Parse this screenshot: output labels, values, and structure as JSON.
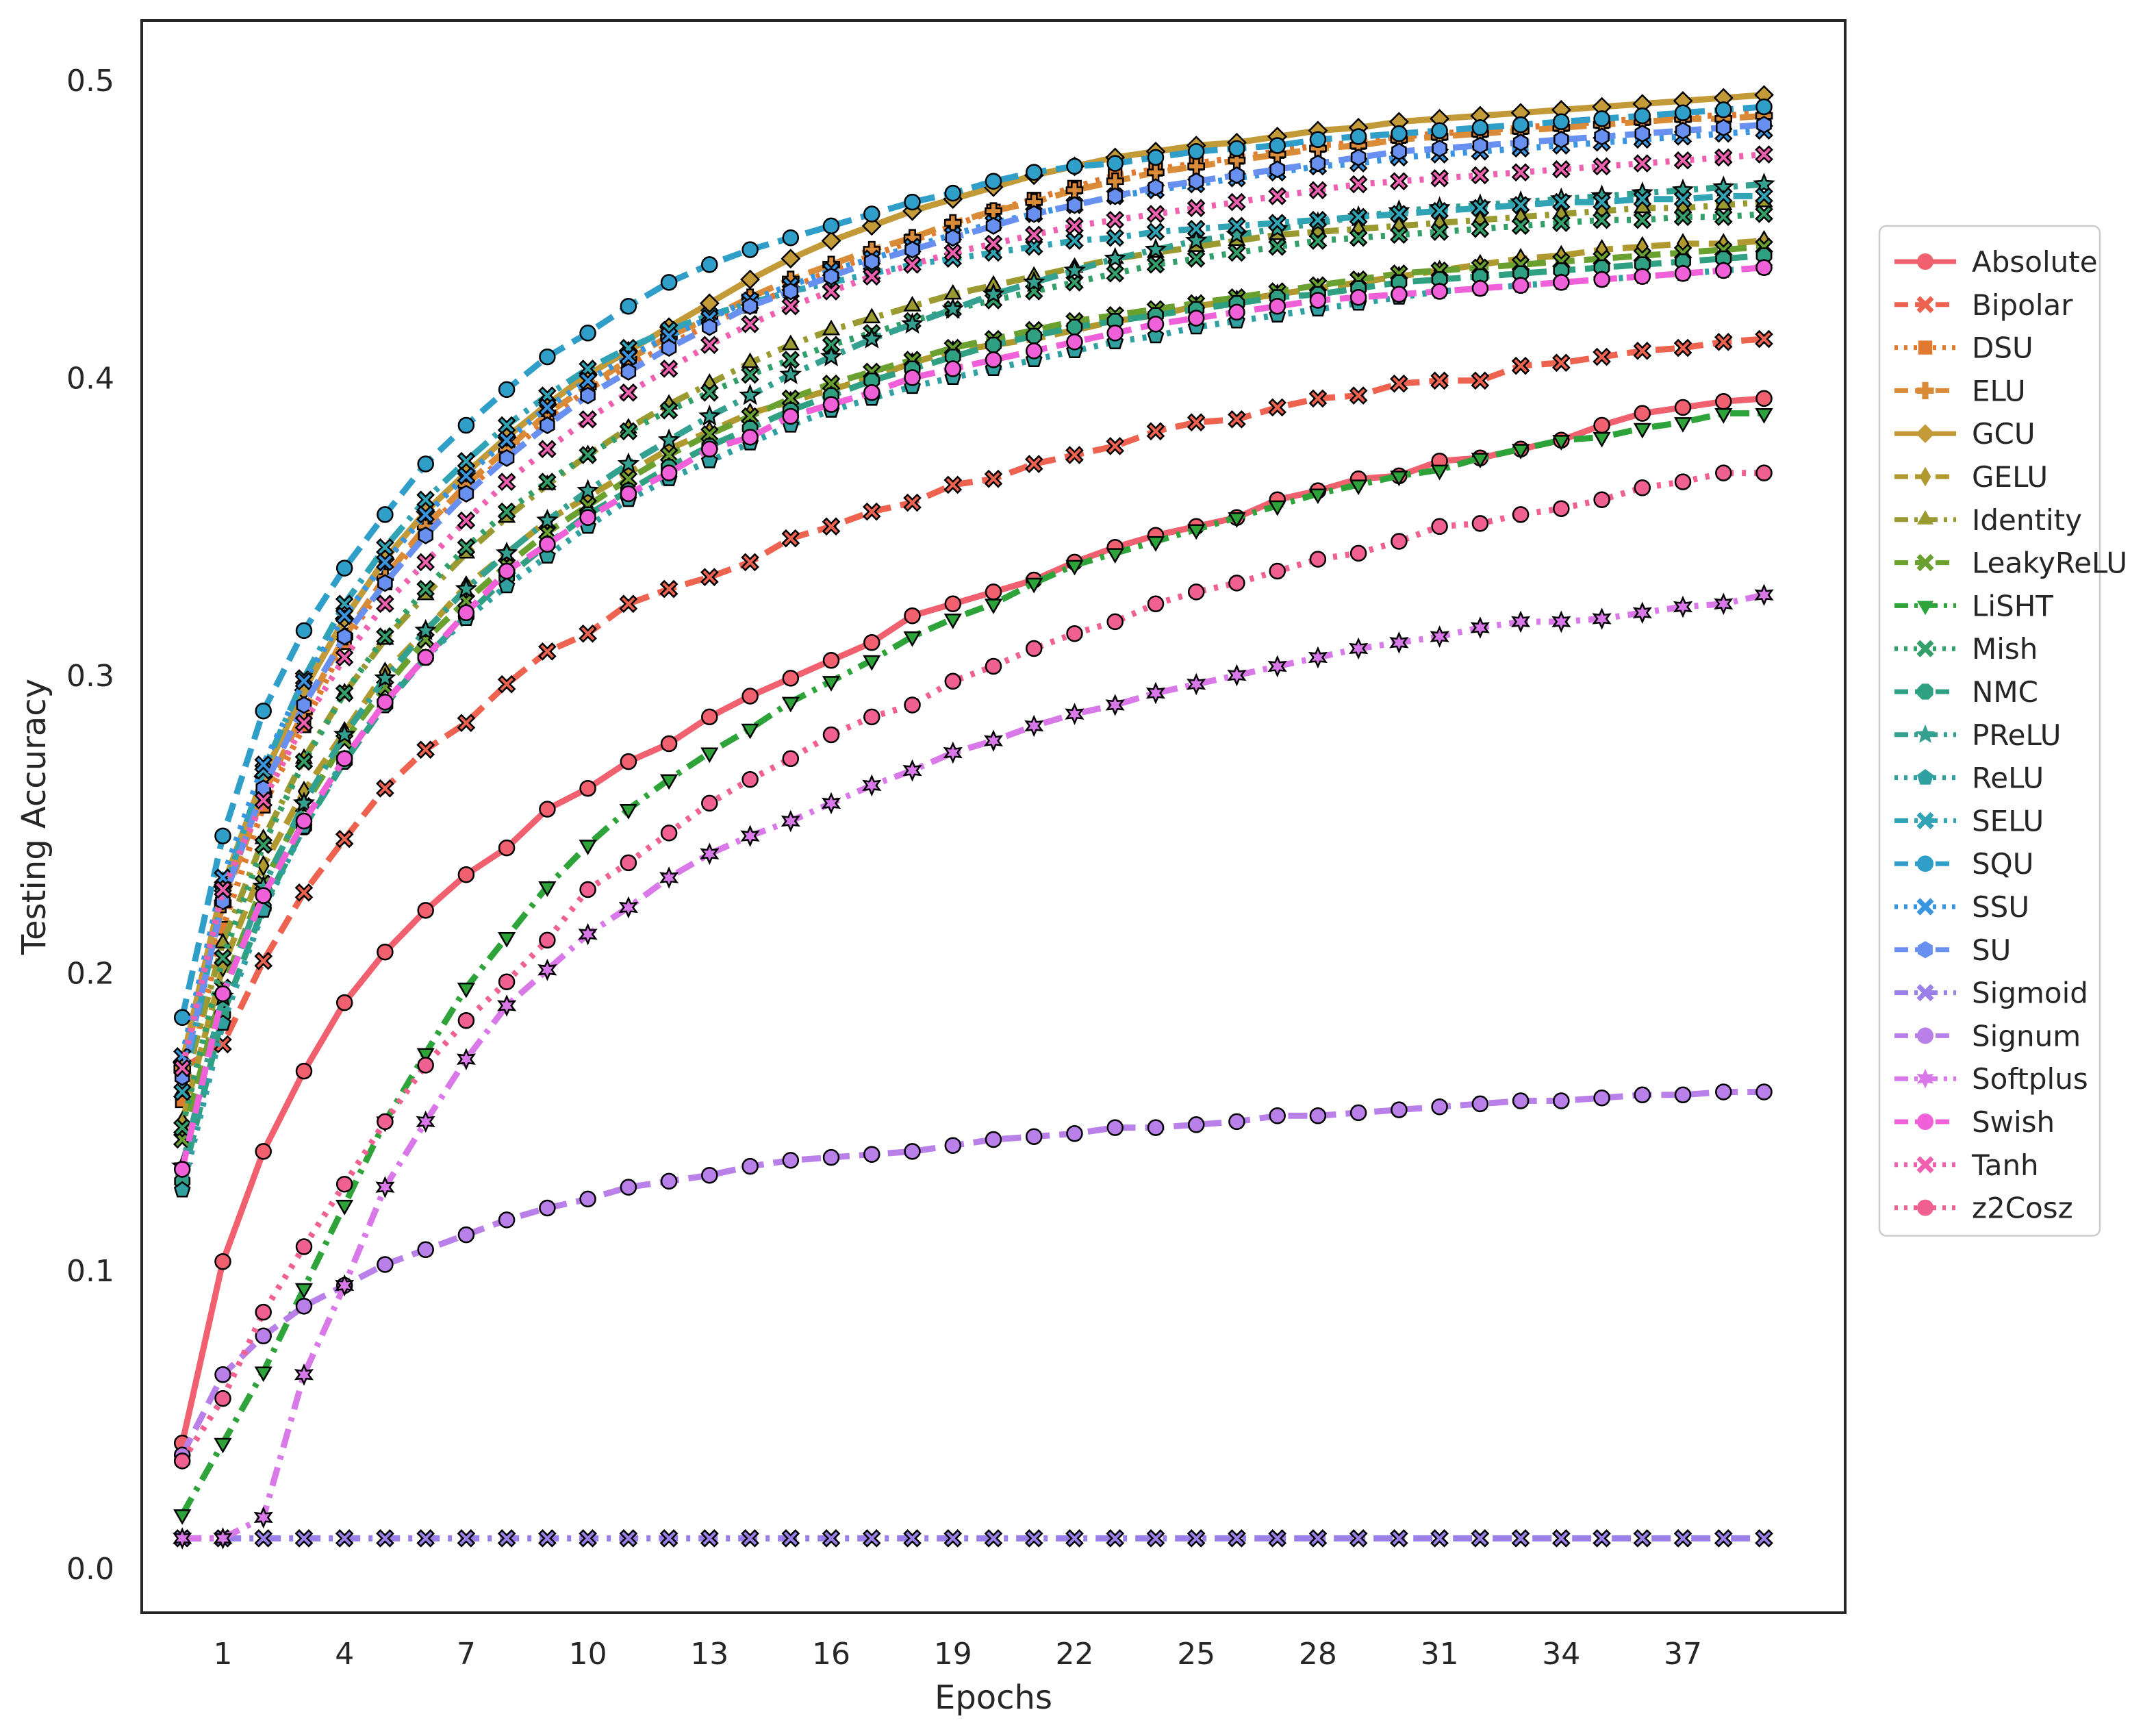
{
  "chart_data": {
    "type": "line",
    "title": "",
    "xlabel": "Epochs",
    "ylabel": "Testing Accuracy",
    "xlim": [
      -1.0,
      41.0
    ],
    "ylim": [
      -0.015,
      0.52
    ],
    "xticks": [
      1,
      4,
      7,
      10,
      13,
      16,
      19,
      22,
      25,
      28,
      31,
      34,
      37
    ],
    "xtick_labels": [
      "1",
      "4",
      "7",
      "10",
      "13",
      "16",
      "19",
      "22",
      "25",
      "28",
      "31",
      "34",
      "37"
    ],
    "yticks": [
      0.0,
      0.1,
      0.2,
      0.3,
      0.4,
      0.5
    ],
    "ytick_labels": [
      "0.0",
      "0.1",
      "0.2",
      "0.3",
      "0.4",
      "0.5"
    ],
    "grid": false,
    "legend_position": "right, outside",
    "series": [
      {
        "name": "Absolute",
        "color": "#f0606f",
        "dash": "solid",
        "marker": "circle",
        "values": [
          0.042,
          0.103,
          0.14,
          0.167,
          0.19,
          0.207,
          0.221,
          0.233,
          0.242,
          0.255,
          0.262,
          0.271,
          0.277,
          0.286,
          0.293,
          0.299,
          0.305,
          0.311,
          0.32,
          0.324,
          0.328,
          0.332,
          0.338,
          0.343,
          0.347,
          0.35,
          0.353,
          0.359,
          0.362,
          0.366,
          0.367,
          0.372,
          0.373,
          0.376,
          0.379,
          0.384,
          0.388,
          0.39,
          0.392,
          0.393
        ]
      },
      {
        "name": "Bipolar",
        "color": "#ee6250",
        "dash": "dashed",
        "marker": "x",
        "values": [
          0.168,
          0.176,
          0.204,
          0.227,
          0.245,
          0.262,
          0.275,
          0.284,
          0.297,
          0.308,
          0.314,
          0.324,
          0.329,
          0.333,
          0.338,
          0.346,
          0.35,
          0.355,
          0.358,
          0.364,
          0.366,
          0.371,
          0.374,
          0.377,
          0.382,
          0.385,
          0.386,
          0.39,
          0.393,
          0.394,
          0.398,
          0.399,
          0.399,
          0.404,
          0.405,
          0.407,
          0.409,
          0.41,
          0.412,
          0.413
        ]
      },
      {
        "name": "DSU",
        "color": "#e07a30",
        "dash": "dotted",
        "marker": "square",
        "values": [
          0.157,
          0.215,
          0.256,
          0.283,
          0.311,
          0.331,
          0.349,
          0.362,
          0.374,
          0.386,
          0.396,
          0.404,
          0.411,
          0.418,
          0.424,
          0.43,
          0.436,
          0.441,
          0.446,
          0.451,
          0.456,
          0.46,
          0.464,
          0.468,
          0.47,
          0.472,
          0.474,
          0.476,
          0.478,
          0.479,
          0.481,
          0.482,
          0.483,
          0.484,
          0.485,
          0.486,
          0.487,
          0.488,
          0.488,
          0.489
        ]
      },
      {
        "name": "ELU",
        "color": "#d98b38",
        "dash": "dashed",
        "marker": "plus",
        "values": [
          0.168,
          0.223,
          0.26,
          0.288,
          0.313,
          0.333,
          0.35,
          0.364,
          0.376,
          0.388,
          0.397,
          0.406,
          0.414,
          0.42,
          0.427,
          0.433,
          0.438,
          0.443,
          0.447,
          0.452,
          0.456,
          0.459,
          0.463,
          0.466,
          0.469,
          0.471,
          0.473,
          0.475,
          0.477,
          0.478,
          0.48,
          0.481,
          0.482,
          0.483,
          0.484,
          0.485,
          0.486,
          0.487,
          0.487,
          0.488
        ]
      },
      {
        "name": "GCU",
        "color": "#c39a38",
        "dash": "solid",
        "marker": "diamond",
        "values": [
          0.17,
          0.229,
          0.266,
          0.295,
          0.319,
          0.339,
          0.355,
          0.368,
          0.38,
          0.391,
          0.401,
          0.409,
          0.417,
          0.425,
          0.433,
          0.44,
          0.446,
          0.451,
          0.456,
          0.46,
          0.464,
          0.468,
          0.471,
          0.474,
          0.476,
          0.478,
          0.479,
          0.481,
          0.483,
          0.484,
          0.486,
          0.487,
          0.488,
          0.489,
          0.49,
          0.491,
          0.492,
          0.493,
          0.494,
          0.495
        ]
      },
      {
        "name": "GELU",
        "color": "#b09a30",
        "dash": "dashed",
        "marker": "thin_diamond",
        "values": [
          0.15,
          0.202,
          0.236,
          0.261,
          0.281,
          0.301,
          0.315,
          0.33,
          0.341,
          0.352,
          0.36,
          0.368,
          0.376,
          0.382,
          0.388,
          0.392,
          0.396,
          0.4,
          0.405,
          0.409,
          0.411,
          0.413,
          0.416,
          0.419,
          0.421,
          0.424,
          0.426,
          0.428,
          0.43,
          0.432,
          0.434,
          0.436,
          0.438,
          0.44,
          0.441,
          0.443,
          0.444,
          0.445,
          0.445,
          0.446
        ]
      },
      {
        "name": "Identity",
        "color": "#9a9a30",
        "dash": "dashdot",
        "marker": "triangle_up",
        "values": [
          0.16,
          0.21,
          0.245,
          0.272,
          0.294,
          0.312,
          0.327,
          0.341,
          0.353,
          0.364,
          0.374,
          0.383,
          0.391,
          0.398,
          0.405,
          0.411,
          0.416,
          0.42,
          0.424,
          0.428,
          0.431,
          0.434,
          0.437,
          0.44,
          0.442,
          0.444,
          0.446,
          0.448,
          0.449,
          0.45,
          0.451,
          0.452,
          0.453,
          0.454,
          0.455,
          0.456,
          0.457,
          0.457,
          0.458,
          0.459
        ]
      },
      {
        "name": "LeakyReLU",
        "color": "#6aa030",
        "dash": "dashed",
        "marker": "x",
        "values": [
          0.144,
          0.195,
          0.23,
          0.256,
          0.278,
          0.296,
          0.312,
          0.325,
          0.337,
          0.348,
          0.357,
          0.366,
          0.374,
          0.381,
          0.387,
          0.393,
          0.398,
          0.402,
          0.406,
          0.41,
          0.413,
          0.416,
          0.419,
          0.421,
          0.423,
          0.425,
          0.427,
          0.429,
          0.431,
          0.433,
          0.435,
          0.436,
          0.437,
          0.438,
          0.439,
          0.44,
          0.441,
          0.442,
          0.443,
          0.444
        ]
      },
      {
        "name": "LiSHT",
        "color": "#2ea33a",
        "dash": "dashdot",
        "marker": "triangle_down",
        "values": [
          0.018,
          0.042,
          0.066,
          0.094,
          0.122,
          0.15,
          0.173,
          0.195,
          0.212,
          0.229,
          0.243,
          0.255,
          0.265,
          0.274,
          0.282,
          0.291,
          0.298,
          0.305,
          0.313,
          0.319,
          0.324,
          0.331,
          0.337,
          0.341,
          0.345,
          0.349,
          0.353,
          0.357,
          0.361,
          0.364,
          0.367,
          0.369,
          0.373,
          0.376,
          0.379,
          0.38,
          0.383,
          0.385,
          0.388,
          0.388
        ]
      },
      {
        "name": "Mish",
        "color": "#33a06a",
        "dash": "dotted",
        "marker": "x",
        "values": [
          0.148,
          0.205,
          0.243,
          0.271,
          0.294,
          0.313,
          0.329,
          0.343,
          0.355,
          0.365,
          0.374,
          0.382,
          0.389,
          0.395,
          0.401,
          0.406,
          0.411,
          0.415,
          0.419,
          0.423,
          0.426,
          0.429,
          0.432,
          0.435,
          0.438,
          0.44,
          0.442,
          0.444,
          0.446,
          0.447,
          0.448,
          0.449,
          0.45,
          0.451,
          0.452,
          0.453,
          0.453,
          0.454,
          0.454,
          0.455
        ]
      },
      {
        "name": "NMC",
        "color": "#30a082",
        "dash": "dashed",
        "marker": "octagon",
        "values": [
          0.13,
          0.186,
          0.222,
          0.249,
          0.271,
          0.29,
          0.306,
          0.32,
          0.333,
          0.344,
          0.354,
          0.362,
          0.37,
          0.377,
          0.383,
          0.389,
          0.394,
          0.399,
          0.403,
          0.407,
          0.411,
          0.414,
          0.417,
          0.419,
          0.421,
          0.423,
          0.425,
          0.427,
          0.428,
          0.43,
          0.432,
          0.433,
          0.434,
          0.435,
          0.436,
          0.437,
          0.438,
          0.439,
          0.44,
          0.441
        ]
      },
      {
        "name": "PReLU",
        "color": "#33a090",
        "dash": "dashdot",
        "marker": "star",
        "values": [
          0.135,
          0.192,
          0.229,
          0.257,
          0.28,
          0.299,
          0.315,
          0.329,
          0.341,
          0.352,
          0.362,
          0.371,
          0.379,
          0.387,
          0.394,
          0.401,
          0.407,
          0.413,
          0.418,
          0.423,
          0.428,
          0.432,
          0.436,
          0.44,
          0.443,
          0.446,
          0.448,
          0.45,
          0.452,
          0.454,
          0.456,
          0.457,
          0.458,
          0.459,
          0.46,
          0.461,
          0.462,
          0.463,
          0.464,
          0.465
        ]
      },
      {
        "name": "ReLU",
        "color": "#30a0a0",
        "dash": "dotted",
        "marker": "pentagon",
        "values": [
          0.127,
          0.183,
          0.221,
          0.249,
          0.272,
          0.291,
          0.306,
          0.319,
          0.33,
          0.34,
          0.35,
          0.359,
          0.366,
          0.372,
          0.378,
          0.384,
          0.389,
          0.393,
          0.397,
          0.4,
          0.403,
          0.406,
          0.409,
          0.412,
          0.414,
          0.417,
          0.419,
          0.421,
          0.423,
          0.425,
          0.427,
          0.429,
          0.43,
          0.431,
          0.432,
          0.433,
          0.434,
          0.435,
          0.436,
          0.437
        ]
      },
      {
        "name": "SELU",
        "color": "#30a3b4",
        "dash": "dashdot",
        "marker": "x",
        "values": [
          0.16,
          0.226,
          0.268,
          0.299,
          0.324,
          0.343,
          0.359,
          0.372,
          0.384,
          0.394,
          0.403,
          0.41,
          0.416,
          0.421,
          0.425,
          0.429,
          0.432,
          0.435,
          0.438,
          0.44,
          0.442,
          0.444,
          0.446,
          0.447,
          0.449,
          0.45,
          0.451,
          0.452,
          0.453,
          0.454,
          0.455,
          0.456,
          0.457,
          0.458,
          0.459,
          0.459,
          0.46,
          0.46,
          0.461,
          0.461
        ]
      },
      {
        "name": "SQU",
        "color": "#2f9fca",
        "dash": "dashed",
        "marker": "circle",
        "values": [
          0.185,
          0.246,
          0.288,
          0.315,
          0.336,
          0.354,
          0.371,
          0.384,
          0.396,
          0.407,
          0.415,
          0.424,
          0.432,
          0.438,
          0.443,
          0.447,
          0.451,
          0.455,
          0.459,
          0.462,
          0.466,
          0.469,
          0.471,
          0.472,
          0.474,
          0.476,
          0.477,
          0.478,
          0.48,
          0.481,
          0.482,
          0.483,
          0.484,
          0.485,
          0.486,
          0.487,
          0.488,
          0.489,
          0.49,
          0.491
        ]
      },
      {
        "name": "SSU",
        "color": "#3a95e0",
        "dash": "dotted",
        "marker": "x",
        "values": [
          0.172,
          0.232,
          0.27,
          0.298,
          0.32,
          0.338,
          0.354,
          0.367,
          0.379,
          0.39,
          0.399,
          0.407,
          0.414,
          0.42,
          0.426,
          0.431,
          0.436,
          0.44,
          0.444,
          0.448,
          0.452,
          0.455,
          0.458,
          0.461,
          0.463,
          0.465,
          0.467,
          0.469,
          0.471,
          0.472,
          0.474,
          0.475,
          0.476,
          0.477,
          0.478,
          0.479,
          0.48,
          0.481,
          0.482,
          0.483
        ]
      },
      {
        "name": "SU",
        "color": "#6890f0",
        "dash": "dashed",
        "marker": "hexagon",
        "values": [
          0.165,
          0.224,
          0.262,
          0.29,
          0.313,
          0.331,
          0.347,
          0.361,
          0.373,
          0.384,
          0.394,
          0.402,
          0.41,
          0.417,
          0.424,
          0.429,
          0.434,
          0.439,
          0.443,
          0.447,
          0.451,
          0.455,
          0.458,
          0.461,
          0.464,
          0.466,
          0.468,
          0.47,
          0.472,
          0.474,
          0.476,
          0.477,
          0.478,
          0.479,
          0.48,
          0.481,
          0.482,
          0.483,
          0.484,
          0.485
        ]
      },
      {
        "name": "Sigmoid",
        "color": "#9a80e8",
        "dash": "dashdot",
        "marker": "x",
        "values": [
          0.01,
          0.01,
          0.01,
          0.01,
          0.01,
          0.01,
          0.01,
          0.01,
          0.01,
          0.01,
          0.01,
          0.01,
          0.01,
          0.01,
          0.01,
          0.01,
          0.01,
          0.01,
          0.01,
          0.01,
          0.01,
          0.01,
          0.01,
          0.01,
          0.01,
          0.01,
          0.01,
          0.01,
          0.01,
          0.01,
          0.01,
          0.01,
          0.01,
          0.01,
          0.01,
          0.01,
          0.01,
          0.01,
          0.01,
          0.01
        ]
      },
      {
        "name": "Signum",
        "color": "#b880e8",
        "dash": "dashed",
        "marker": "circle",
        "values": [
          0.038,
          0.065,
          0.078,
          0.088,
          0.095,
          0.102,
          0.107,
          0.112,
          0.117,
          0.121,
          0.124,
          0.128,
          0.13,
          0.132,
          0.135,
          0.137,
          0.138,
          0.139,
          0.14,
          0.142,
          0.144,
          0.145,
          0.146,
          0.148,
          0.148,
          0.149,
          0.15,
          0.152,
          0.152,
          0.153,
          0.154,
          0.155,
          0.156,
          0.157,
          0.157,
          0.158,
          0.159,
          0.159,
          0.16,
          0.16
        ]
      },
      {
        "name": "Softplus",
        "color": "#d978e8",
        "dash": "dashdot",
        "marker": "star6",
        "values": [
          0.01,
          0.01,
          0.017,
          0.065,
          0.095,
          0.128,
          0.15,
          0.171,
          0.189,
          0.201,
          0.213,
          0.222,
          0.232,
          0.24,
          0.246,
          0.251,
          0.257,
          0.263,
          0.268,
          0.274,
          0.278,
          0.283,
          0.287,
          0.29,
          0.294,
          0.297,
          0.3,
          0.303,
          0.306,
          0.309,
          0.311,
          0.313,
          0.316,
          0.318,
          0.318,
          0.319,
          0.321,
          0.323,
          0.324,
          0.327
        ]
      },
      {
        "name": "Swish",
        "color": "#f060d8",
        "dash": "dashed",
        "marker": "circle",
        "values": [
          0.134,
          0.193,
          0.226,
          0.251,
          0.272,
          0.291,
          0.306,
          0.321,
          0.335,
          0.344,
          0.353,
          0.361,
          0.368,
          0.376,
          0.38,
          0.387,
          0.391,
          0.395,
          0.4,
          0.403,
          0.406,
          0.409,
          0.412,
          0.415,
          0.418,
          0.42,
          0.422,
          0.424,
          0.426,
          0.427,
          0.428,
          0.429,
          0.43,
          0.431,
          0.432,
          0.433,
          0.434,
          0.435,
          0.436,
          0.437
        ]
      },
      {
        "name": "Tanh",
        "color": "#f060b0",
        "dash": "dotted",
        "marker": "x",
        "values": [
          0.168,
          0.228,
          0.258,
          0.284,
          0.306,
          0.324,
          0.338,
          0.352,
          0.365,
          0.376,
          0.386,
          0.395,
          0.403,
          0.411,
          0.418,
          0.424,
          0.429,
          0.434,
          0.438,
          0.442,
          0.445,
          0.448,
          0.451,
          0.453,
          0.455,
          0.457,
          0.459,
          0.461,
          0.463,
          0.465,
          0.466,
          0.467,
          0.468,
          0.469,
          0.47,
          0.471,
          0.472,
          0.473,
          0.474,
          0.475
        ]
      },
      {
        "name": "z2Cosz",
        "color": "#f06090",
        "dash": "dotted",
        "marker": "circle",
        "values": [
          0.036,
          0.057,
          0.086,
          0.108,
          0.129,
          0.15,
          0.169,
          0.184,
          0.197,
          0.211,
          0.228,
          0.237,
          0.247,
          0.257,
          0.265,
          0.272,
          0.28,
          0.286,
          0.29,
          0.298,
          0.303,
          0.309,
          0.314,
          0.318,
          0.324,
          0.328,
          0.331,
          0.335,
          0.339,
          0.341,
          0.345,
          0.35,
          0.351,
          0.354,
          0.356,
          0.359,
          0.363,
          0.365,
          0.368,
          0.368
        ]
      }
    ]
  }
}
